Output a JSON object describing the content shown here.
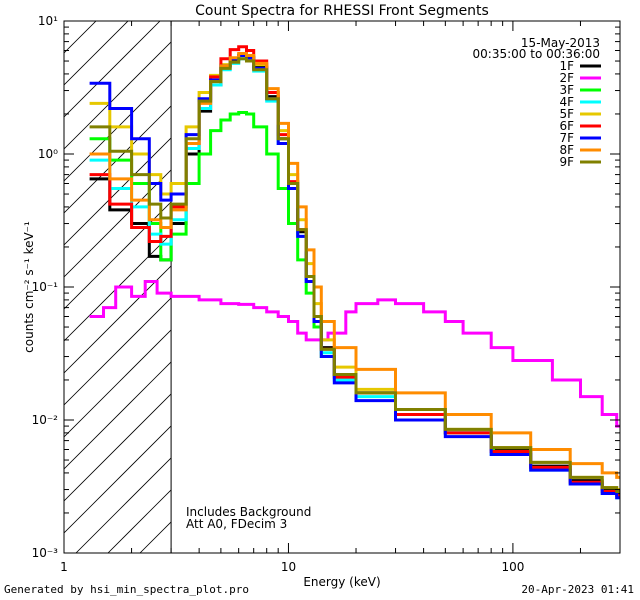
{
  "chart_data": {
    "type": "line",
    "title": "Count Spectra for RHESSI Front Segments",
    "xlabel": "Energy (keV)",
    "ylabel": "counts cm⁻² s⁻¹ keV⁻¹",
    "xscale": "log",
    "yscale": "log",
    "xlim": [
      1,
      300
    ],
    "ylim": [
      0.001,
      10
    ],
    "x_ticks": [
      {
        "value": 1,
        "label": "1"
      },
      {
        "value": 10,
        "label": "10"
      },
      {
        "value": 100,
        "label": "100"
      }
    ],
    "y_ticks": [
      {
        "value": 0.001,
        "label": "10⁻³"
      },
      {
        "value": 0.01,
        "label": "10⁻²"
      },
      {
        "value": 0.1,
        "label": "10⁻¹"
      },
      {
        "value": 1,
        "label": "10⁰"
      },
      {
        "value": 10,
        "label": "10¹"
      }
    ],
    "date": "15-May-2013",
    "time_range": "00:35:00 to 00:36:00",
    "annotations": [
      "Includes Background",
      "Att A0, FDecim 3"
    ],
    "excluded_below_keV": 3,
    "series": [
      {
        "name": "1F",
        "color": "#000000",
        "points": [
          [
            1.3,
            0.65
          ],
          [
            1.6,
            0.38
          ],
          [
            2.0,
            0.3
          ],
          [
            2.4,
            0.17
          ],
          [
            2.7,
            0.16
          ],
          [
            3.0,
            0.3
          ],
          [
            3.5,
            1.0
          ],
          [
            4.0,
            2.1
          ],
          [
            4.5,
            3.3
          ],
          [
            5.0,
            4.6
          ],
          [
            5.5,
            5.1
          ],
          [
            6.0,
            5.5
          ],
          [
            6.5,
            5.3
          ],
          [
            7.0,
            4.5
          ],
          [
            8.0,
            2.7
          ],
          [
            9.0,
            1.3
          ],
          [
            10.0,
            0.6
          ],
          [
            11.0,
            0.26
          ],
          [
            12.0,
            0.12
          ],
          [
            13.0,
            0.06
          ],
          [
            14.0,
            0.035
          ],
          [
            16.0,
            0.022
          ],
          [
            20.0,
            0.016
          ],
          [
            30.0,
            0.012
          ],
          [
            50.0,
            0.008
          ],
          [
            80.0,
            0.006
          ],
          [
            120.0,
            0.0045
          ],
          [
            180.0,
            0.0035
          ],
          [
            250.0,
            0.003
          ],
          [
            290.0,
            0.0028
          ]
        ]
      },
      {
        "name": "2F",
        "color": "#ff00ff",
        "points": [
          [
            1.3,
            0.06
          ],
          [
            1.5,
            0.07
          ],
          [
            1.7,
            0.1
          ],
          [
            2.0,
            0.085
          ],
          [
            2.3,
            0.11
          ],
          [
            2.6,
            0.09
          ],
          [
            3.0,
            0.085
          ],
          [
            4.0,
            0.08
          ],
          [
            5.0,
            0.075
          ],
          [
            6.0,
            0.074
          ],
          [
            7.0,
            0.07
          ],
          [
            8.0,
            0.065
          ],
          [
            9.0,
            0.06
          ],
          [
            10.0,
            0.055
          ],
          [
            11.0,
            0.045
          ],
          [
            12.0,
            0.04
          ],
          [
            13.0,
            0.04
          ],
          [
            15.0,
            0.045
          ],
          [
            18.0,
            0.065
          ],
          [
            20.0,
            0.075
          ],
          [
            25.0,
            0.08
          ],
          [
            30.0,
            0.075
          ],
          [
            40.0,
            0.065
          ],
          [
            50.0,
            0.055
          ],
          [
            60.0,
            0.045
          ],
          [
            80.0,
            0.035
          ],
          [
            100.0,
            0.028
          ],
          [
            150.0,
            0.02
          ],
          [
            200.0,
            0.015
          ],
          [
            250.0,
            0.011
          ],
          [
            290.0,
            0.009
          ]
        ]
      },
      {
        "name": "3F",
        "color": "#00ff00",
        "points": [
          [
            1.3,
            1.3
          ],
          [
            1.6,
            0.9
          ],
          [
            2.0,
            0.6
          ],
          [
            2.4,
            0.3
          ],
          [
            2.7,
            0.16
          ],
          [
            3.0,
            0.25
          ],
          [
            3.5,
            0.6
          ],
          [
            4.0,
            1.0
          ],
          [
            4.5,
            1.5
          ],
          [
            5.0,
            1.8
          ],
          [
            5.5,
            2.0
          ],
          [
            6.0,
            2.05
          ],
          [
            6.5,
            2.0
          ],
          [
            7.0,
            1.6
          ],
          [
            8.0,
            1.0
          ],
          [
            9.0,
            0.55
          ],
          [
            10.0,
            0.3
          ],
          [
            11.0,
            0.16
          ],
          [
            12.0,
            0.09
          ],
          [
            13.0,
            0.05
          ],
          [
            14.0,
            0.03
          ],
          [
            16.0,
            0.022
          ],
          [
            20.0,
            0.016
          ],
          [
            30.0,
            0.012
          ],
          [
            50.0,
            0.008
          ],
          [
            80.0,
            0.006
          ]
        ]
      },
      {
        "name": "4F",
        "color": "#00ffff",
        "points": [
          [
            1.3,
            0.9
          ],
          [
            1.6,
            0.55
          ],
          [
            2.0,
            0.4
          ],
          [
            2.4,
            0.25
          ],
          [
            2.7,
            0.21
          ],
          [
            3.0,
            0.32
          ],
          [
            3.5,
            1.1
          ],
          [
            4.0,
            2.2
          ],
          [
            4.5,
            3.3
          ],
          [
            5.0,
            4.3
          ],
          [
            5.5,
            4.8
          ],
          [
            6.0,
            5.2
          ],
          [
            6.5,
            5.0
          ],
          [
            7.0,
            4.2
          ],
          [
            8.0,
            2.5
          ],
          [
            9.0,
            1.2
          ],
          [
            10.0,
            0.55
          ],
          [
            11.0,
            0.24
          ],
          [
            12.0,
            0.11
          ],
          [
            13.0,
            0.055
          ],
          [
            14.0,
            0.032
          ],
          [
            16.0,
            0.02
          ],
          [
            20.0,
            0.015
          ],
          [
            30.0,
            0.011
          ],
          [
            50.0,
            0.008
          ],
          [
            80.0,
            0.0055
          ],
          [
            120.0,
            0.0042
          ],
          [
            180.0,
            0.0033
          ],
          [
            250.0,
            0.0028
          ],
          [
            290.0,
            0.0026
          ]
        ]
      },
      {
        "name": "5F",
        "color": "#e6c800",
        "points": [
          [
            1.3,
            2.4
          ],
          [
            1.6,
            1.6
          ],
          [
            2.0,
            1.0
          ],
          [
            2.4,
            0.7
          ],
          [
            2.7,
            0.5
          ],
          [
            3.0,
            0.6
          ],
          [
            3.5,
            1.6
          ],
          [
            4.0,
            2.9
          ],
          [
            4.5,
            3.9
          ],
          [
            5.0,
            4.7
          ],
          [
            5.5,
            5.2
          ],
          [
            6.0,
            5.6
          ],
          [
            6.5,
            5.4
          ],
          [
            7.0,
            4.7
          ],
          [
            8.0,
            2.9
          ],
          [
            9.0,
            1.5
          ],
          [
            10.0,
            0.7
          ],
          [
            11.0,
            0.32
          ],
          [
            12.0,
            0.15
          ],
          [
            13.0,
            0.075
          ],
          [
            14.0,
            0.04
          ],
          [
            16.0,
            0.025
          ],
          [
            20.0,
            0.017
          ],
          [
            30.0,
            0.012
          ],
          [
            50.0,
            0.0085
          ],
          [
            80.0,
            0.0062
          ],
          [
            120.0,
            0.0048
          ],
          [
            180.0,
            0.0037
          ],
          [
            250.0,
            0.0031
          ],
          [
            290.0,
            0.003
          ]
        ]
      },
      {
        "name": "6F",
        "color": "#ff0000",
        "points": [
          [
            1.3,
            0.7
          ],
          [
            1.6,
            0.42
          ],
          [
            2.0,
            0.28
          ],
          [
            2.4,
            0.22
          ],
          [
            2.7,
            0.24
          ],
          [
            3.0,
            0.4
          ],
          [
            3.5,
            1.2
          ],
          [
            4.0,
            2.5
          ],
          [
            4.5,
            3.8
          ],
          [
            5.0,
            5.2
          ],
          [
            5.5,
            6.1
          ],
          [
            6.0,
            6.4
          ],
          [
            6.5,
            6.0
          ],
          [
            7.0,
            5.0
          ],
          [
            8.0,
            2.9
          ],
          [
            9.0,
            1.4
          ],
          [
            10.0,
            0.62
          ],
          [
            11.0,
            0.27
          ],
          [
            12.0,
            0.12
          ],
          [
            13.0,
            0.06
          ],
          [
            14.0,
            0.034
          ],
          [
            16.0,
            0.021
          ],
          [
            20.0,
            0.016
          ],
          [
            30.0,
            0.011
          ],
          [
            50.0,
            0.008
          ],
          [
            80.0,
            0.0058
          ],
          [
            120.0,
            0.0044
          ],
          [
            180.0,
            0.0034
          ],
          [
            250.0,
            0.0029
          ],
          [
            290.0,
            0.0027
          ]
        ]
      },
      {
        "name": "7F",
        "color": "#0000ff",
        "points": [
          [
            1.3,
            3.4
          ],
          [
            1.6,
            2.2
          ],
          [
            2.0,
            1.3
          ],
          [
            2.4,
            0.6
          ],
          [
            2.7,
            0.45
          ],
          [
            3.0,
            0.5
          ],
          [
            3.5,
            1.4
          ],
          [
            4.0,
            2.6
          ],
          [
            4.5,
            3.6
          ],
          [
            5.0,
            4.6
          ],
          [
            5.5,
            5.2
          ],
          [
            6.0,
            5.5
          ],
          [
            6.5,
            5.3
          ],
          [
            7.0,
            4.4
          ],
          [
            8.0,
            2.6
          ],
          [
            9.0,
            1.2
          ],
          [
            10.0,
            0.55
          ],
          [
            11.0,
            0.24
          ],
          [
            12.0,
            0.11
          ],
          [
            13.0,
            0.055
          ],
          [
            14.0,
            0.03
          ],
          [
            16.0,
            0.019
          ],
          [
            20.0,
            0.014
          ],
          [
            30.0,
            0.01
          ],
          [
            50.0,
            0.0075
          ],
          [
            80.0,
            0.0055
          ],
          [
            120.0,
            0.0042
          ],
          [
            180.0,
            0.0033
          ],
          [
            250.0,
            0.0028
          ],
          [
            290.0,
            0.0026
          ]
        ]
      },
      {
        "name": "8F",
        "color": "#ff8c00",
        "points": [
          [
            1.3,
            1.0
          ],
          [
            1.6,
            0.65
          ],
          [
            2.0,
            0.45
          ],
          [
            2.4,
            0.32
          ],
          [
            2.7,
            0.28
          ],
          [
            3.0,
            0.38
          ],
          [
            3.5,
            1.2
          ],
          [
            4.0,
            2.4
          ],
          [
            4.5,
            3.5
          ],
          [
            5.0,
            4.6
          ],
          [
            5.5,
            5.3
          ],
          [
            6.0,
            5.7
          ],
          [
            6.5,
            5.5
          ],
          [
            7.0,
            4.8
          ],
          [
            8.0,
            3.1
          ],
          [
            9.0,
            1.7
          ],
          [
            10.0,
            0.85
          ],
          [
            11.0,
            0.4
          ],
          [
            12.0,
            0.19
          ],
          [
            13.0,
            0.1
          ],
          [
            14.0,
            0.055
          ],
          [
            16.0,
            0.035
          ],
          [
            20.0,
            0.024
          ],
          [
            30.0,
            0.016
          ],
          [
            50.0,
            0.011
          ],
          [
            80.0,
            0.008
          ],
          [
            120.0,
            0.006
          ],
          [
            180.0,
            0.0047
          ],
          [
            250.0,
            0.004
          ],
          [
            290.0,
            0.0037
          ]
        ]
      },
      {
        "name": "9F",
        "color": "#808000",
        "points": [
          [
            1.3,
            1.6
          ],
          [
            1.6,
            1.05
          ],
          [
            2.0,
            0.7
          ],
          [
            2.4,
            0.42
          ],
          [
            2.7,
            0.33
          ],
          [
            3.0,
            0.42
          ],
          [
            3.5,
            1.3
          ],
          [
            4.0,
            2.5
          ],
          [
            4.5,
            3.5
          ],
          [
            5.0,
            4.4
          ],
          [
            5.5,
            4.9
          ],
          [
            6.0,
            5.2
          ],
          [
            6.5,
            5.0
          ],
          [
            7.0,
            4.3
          ],
          [
            8.0,
            2.6
          ],
          [
            9.0,
            1.3
          ],
          [
            10.0,
            0.6
          ],
          [
            11.0,
            0.27
          ],
          [
            12.0,
            0.12
          ],
          [
            13.0,
            0.06
          ],
          [
            14.0,
            0.034
          ],
          [
            16.0,
            0.022
          ],
          [
            20.0,
            0.016
          ],
          [
            30.0,
            0.012
          ],
          [
            50.0,
            0.0085
          ],
          [
            80.0,
            0.0062
          ],
          [
            120.0,
            0.0048
          ],
          [
            180.0,
            0.0037
          ],
          [
            250.0,
            0.0031
          ],
          [
            290.0,
            0.0029
          ]
        ]
      }
    ]
  },
  "footer": {
    "generated_by": "Generated by hsi_min_spectra_plot.pro",
    "timestamp": "20-Apr-2023 01:41"
  }
}
